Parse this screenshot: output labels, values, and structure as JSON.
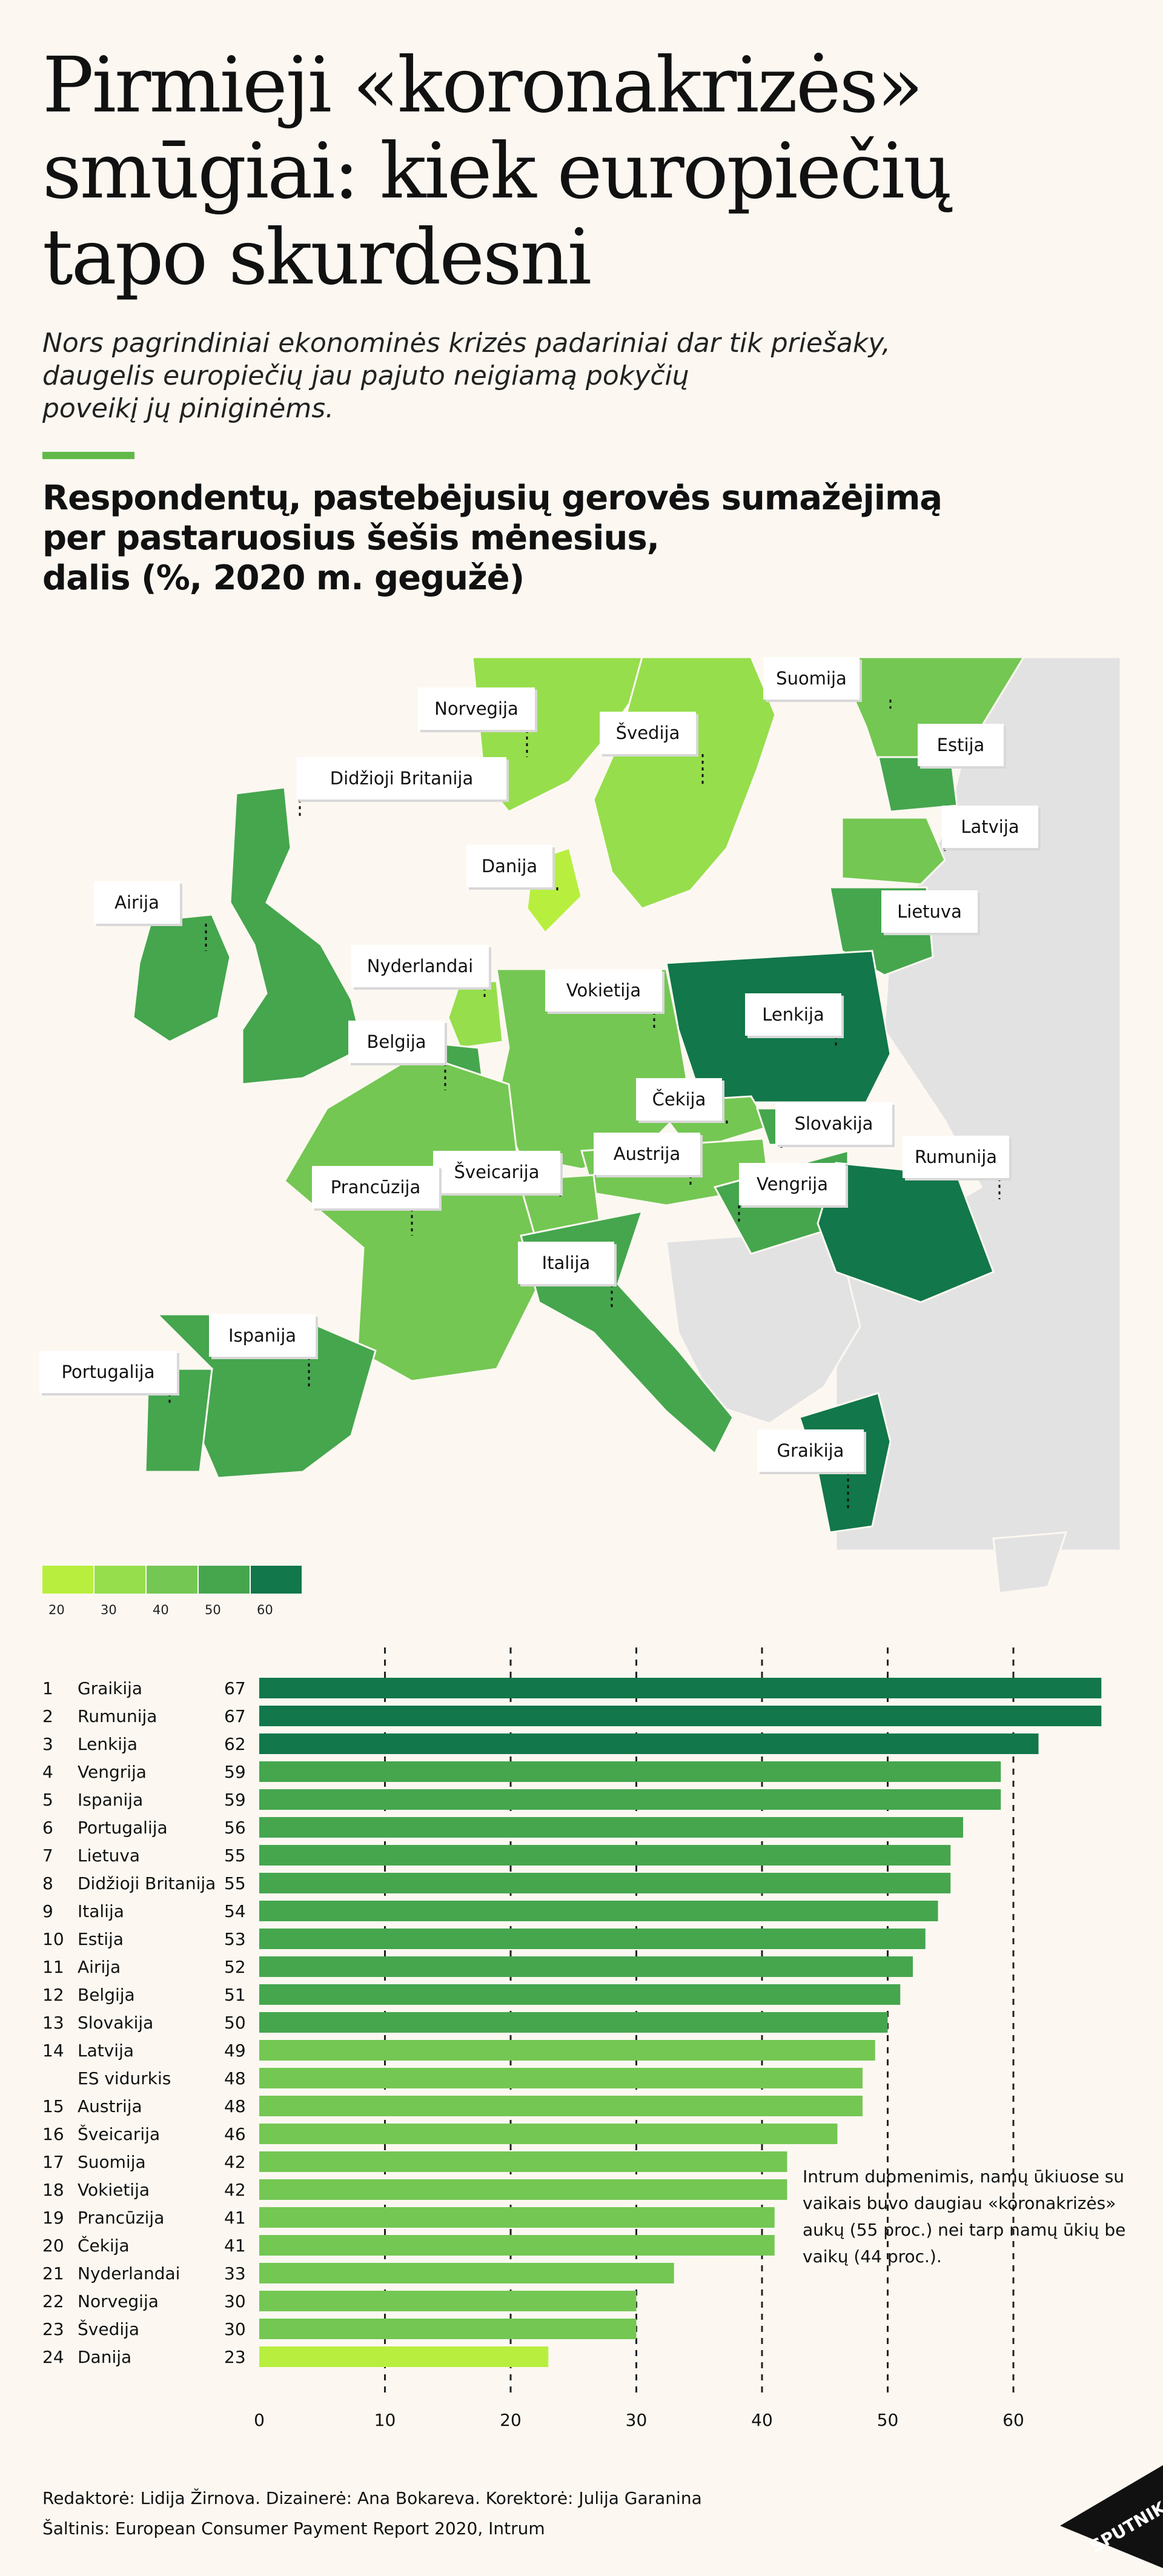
{
  "title": "Pirmieji «koronakrizės» smūgiai: kiek europiečių tapo skurdesni",
  "subtitle": "Nors pagrindiniai ekonominės krizės padariniai dar tik priešaky,\ndaugelis europiečių jau pajuto neigiamą pokyčių\npoveikį jų piniginėms.",
  "chart_title": "Respondentų, pastebėjusių gerovės sumažėjimą\nper pastaruosius šešis mėnesius,\ndalis (%, 2020 m. gegužė)",
  "colors": {
    "scale": [
      "#b8ef3e",
      "#96de4c",
      "#74c753",
      "#45a64e",
      "#12774a"
    ],
    "nodata": "#e2e2e2",
    "bar_light": "#b8ef3e",
    "bar_mid": "#74c753",
    "bar_mid2": "#45a64e",
    "bar_dark": "#12774a"
  },
  "legend": {
    "ticks": [
      "20",
      "30",
      "40",
      "50",
      "60"
    ]
  },
  "map_labels": [
    {
      "name": "Norvegija",
      "value": 30
    },
    {
      "name": "Švedija",
      "value": 30
    },
    {
      "name": "Suomija",
      "value": 42
    },
    {
      "name": "Estija",
      "value": 53
    },
    {
      "name": "Latvija",
      "value": 49
    },
    {
      "name": "Lietuva",
      "value": 55
    },
    {
      "name": "Didžioji Britanija",
      "value": 55
    },
    {
      "name": "Airija",
      "value": 52
    },
    {
      "name": "Danija",
      "value": 23
    },
    {
      "name": "Nyderlandai",
      "value": 33
    },
    {
      "name": "Vokietija",
      "value": 42
    },
    {
      "name": "Lenkija",
      "value": 62
    },
    {
      "name": "Belgija",
      "value": 51
    },
    {
      "name": "Čekija",
      "value": 41
    },
    {
      "name": "Slovakija",
      "value": 50
    },
    {
      "name": "Austrija",
      "value": 48
    },
    {
      "name": "Šveicarija",
      "value": 46
    },
    {
      "name": "Prancūzija",
      "value": 41
    },
    {
      "name": "Vengrija",
      "value": 59
    },
    {
      "name": "Rumunija",
      "value": 67
    },
    {
      "name": "Italija",
      "value": 54
    },
    {
      "name": "Ispanija",
      "value": 59
    },
    {
      "name": "Portugalija",
      "value": 56
    },
    {
      "name": "Graikija",
      "value": 67
    }
  ],
  "chart_data": {
    "type": "bar",
    "orientation": "horizontal",
    "xlim": [
      0,
      67
    ],
    "x_ticks": [
      0,
      10,
      20,
      30,
      40,
      50,
      60
    ],
    "grid": "dashed vertical",
    "rows": [
      {
        "rank": "1",
        "name": "Graikija",
        "value": 67
      },
      {
        "rank": "2",
        "name": "Rumunija",
        "value": 67
      },
      {
        "rank": "3",
        "name": "Lenkija",
        "value": 62
      },
      {
        "rank": "4",
        "name": "Vengrija",
        "value": 59
      },
      {
        "rank": "5",
        "name": "Ispanija",
        "value": 59
      },
      {
        "rank": "6",
        "name": "Portugalija",
        "value": 56
      },
      {
        "rank": "7",
        "name": "Lietuva",
        "value": 55
      },
      {
        "rank": "8",
        "name": "Didžioji Britanija",
        "value": 55
      },
      {
        "rank": "9",
        "name": "Italija",
        "value": 54
      },
      {
        "rank": "10",
        "name": "Estija",
        "value": 53
      },
      {
        "rank": "11",
        "name": "Airija",
        "value": 52
      },
      {
        "rank": "12",
        "name": "Belgija",
        "value": 51
      },
      {
        "rank": "13",
        "name": "Slovakija",
        "value": 50
      },
      {
        "rank": "14",
        "name": "Latvija",
        "value": 49
      },
      {
        "rank": "",
        "name": "ES vidurkis",
        "value": 48
      },
      {
        "rank": "15",
        "name": "Austrija",
        "value": 48
      },
      {
        "rank": "16",
        "name": "Šveicarija",
        "value": 46
      },
      {
        "rank": "17",
        "name": "Suomija",
        "value": 42
      },
      {
        "rank": "18",
        "name": "Vokietija",
        "value": 42
      },
      {
        "rank": "19",
        "name": "Prancūzija",
        "value": 41
      },
      {
        "rank": "20",
        "name": "Čekija",
        "value": 41
      },
      {
        "rank": "21",
        "name": "Nyderlandai",
        "value": 33
      },
      {
        "rank": "22",
        "name": "Norvegija",
        "value": 30
      },
      {
        "rank": "23",
        "name": "Švedija",
        "value": 30
      },
      {
        "rank": "24",
        "name": "Danija",
        "value": 23
      }
    ]
  },
  "note": "Intrum duomenimis, namų ūkiuose su vaikais buvo daugiau «koronakrizės» aukų (55 proc.) nei tarp namų ūkių be vaikų (44 proc.).",
  "credits": {
    "line1": "Redaktorė: Lidija Žirnova. Dizainerė: Ana Bokareva. Korektorė: Julija Garanina",
    "line2": "Šaltinis: European Consumer Payment Report 2020, Intrum"
  },
  "logo": "SPUTNIK"
}
